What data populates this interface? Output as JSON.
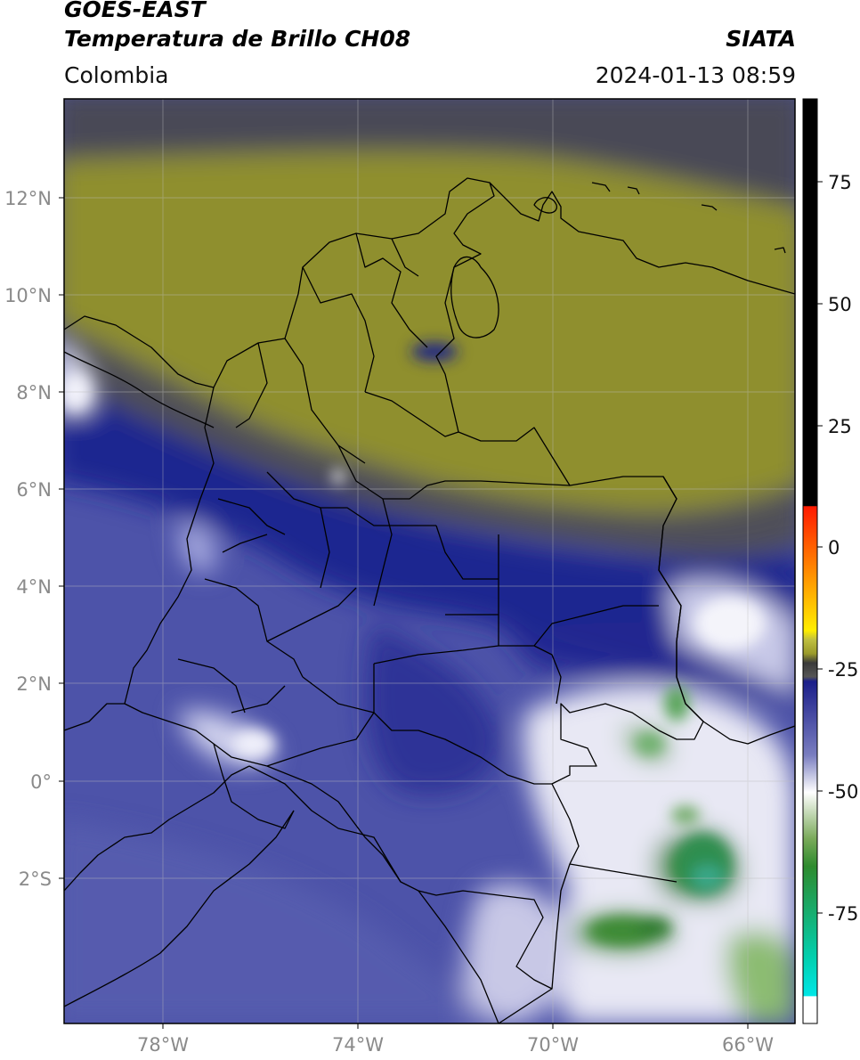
{
  "header": {
    "satellite": "GOES-EAST",
    "product": "Temperatura de Brillo CH08",
    "brand": "SIATA",
    "region": "Colombia",
    "datetime": "2024-01-13 08:59"
  },
  "axes": {
    "lat_ticks": [
      "12°N",
      "10°N",
      "8°N",
      "6°N",
      "4°N",
      "2°N",
      "0°",
      "2°S"
    ],
    "lon_ticks": [
      "78°W",
      "74°W",
      "70°W",
      "66°W"
    ],
    "lon_range_deg": [
      -79.95,
      -64.95
    ],
    "lat_range_deg": [
      -4.6,
      14.0
    ]
  },
  "colorbar": {
    "ticks": [
      "75",
      "50",
      "25",
      "0",
      "-25",
      "-50",
      "-75"
    ],
    "range": [
      -95,
      90
    ],
    "colors": {
      "hot": "#000000",
      "red": "#ff2200",
      "orange": "#ff9900",
      "yellow": "#eeee00",
      "olive": "#9a9a2a",
      "gray": "#555555",
      "navy": "#1b1f8a",
      "white": "#ffffff",
      "green": "#2e8b2e",
      "cyan": "#00e6e6"
    }
  },
  "colors": {
    "olive_field": "#8e8e30",
    "gray_field": "#4e4e58",
    "navy_field": "#1e2488",
    "periwinkle_field": "#4c52a8",
    "cloud_white": "#f2f2fa",
    "cloud_green": "#3a8a3a"
  }
}
